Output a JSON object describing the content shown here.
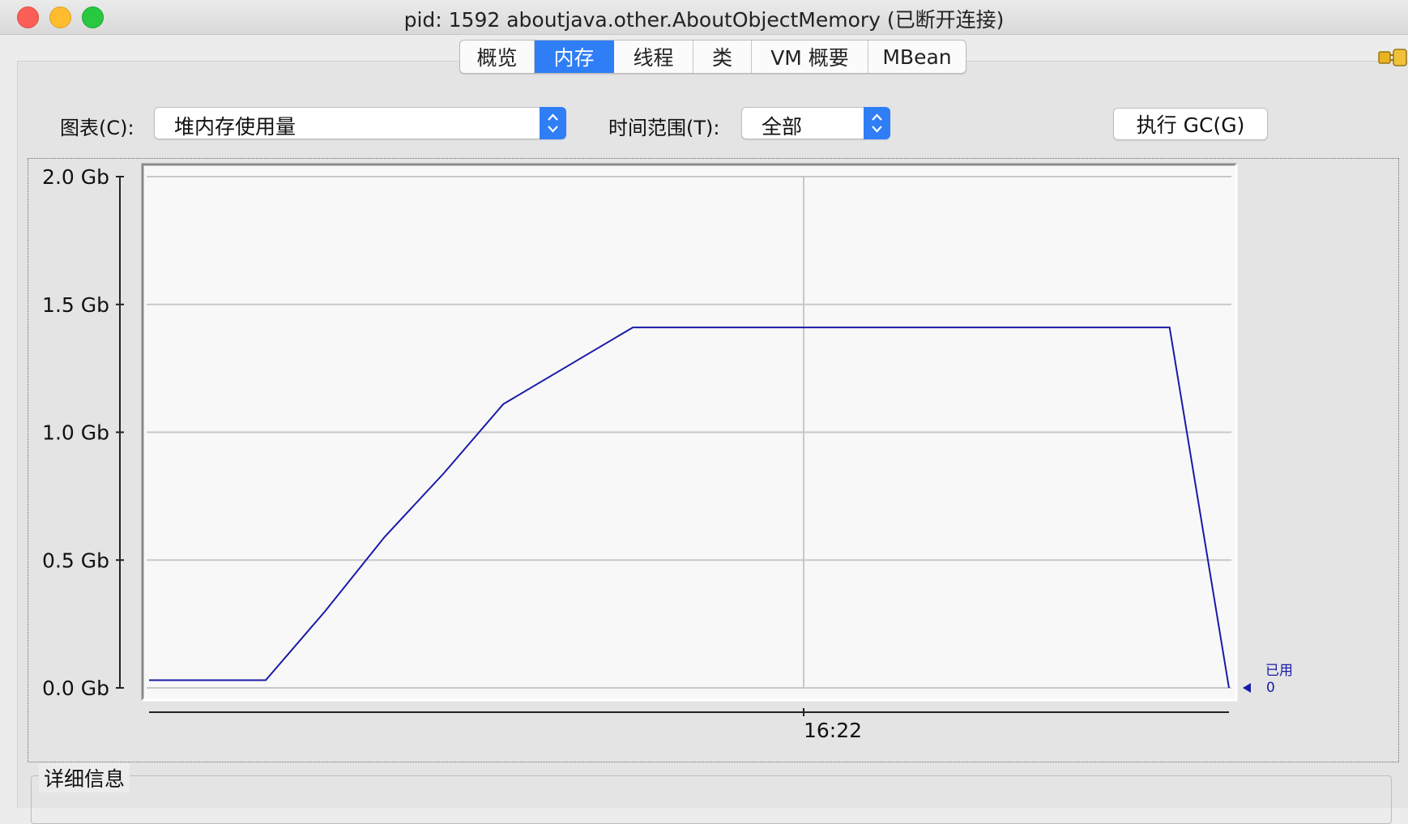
{
  "window": {
    "title": "pid: 1592 aboutjava.other.AboutObjectMemory (已断开连接)"
  },
  "tabs": [
    {
      "label": "概览",
      "active": false
    },
    {
      "label": "内存",
      "active": true
    },
    {
      "label": "线程",
      "active": false
    },
    {
      "label": "类",
      "active": false
    },
    {
      "label": "VM 概要",
      "active": false
    },
    {
      "label": "MBean",
      "active": false
    }
  ],
  "toolbar": {
    "chart_label": "图表(C):",
    "chart_value": "堆内存使用量",
    "time_range_label": "时间范围(T):",
    "time_range_value": "全部",
    "gc_button": "执行 GC(G)"
  },
  "details": {
    "label": "详细信息"
  },
  "colors": {
    "accent": "#2f7ef6",
    "series_line": "#1a1aa8"
  },
  "chart_data": {
    "type": "line",
    "title": "",
    "xlabel": "",
    "ylabel": "",
    "y_ticks": [
      "0.0 Gb",
      "0.5 Gb",
      "1.0 Gb",
      "1.5 Gb",
      "2.0 Gb"
    ],
    "ylim": [
      0,
      2.0
    ],
    "y_unit": "Gb",
    "x_ticks": [
      "16:22"
    ],
    "grid": true,
    "series": [
      {
        "name": "已用",
        "x": [
          0,
          0.108,
          0.163,
          0.218,
          0.273,
          0.328,
          0.448,
          0.945,
          1.0
        ],
        "values": [
          0.03,
          0.03,
          0.3,
          0.59,
          0.84,
          1.11,
          1.41,
          1.41,
          0.0
        ]
      }
    ],
    "legend": [
      {
        "label": "已用",
        "value": "0"
      }
    ]
  }
}
